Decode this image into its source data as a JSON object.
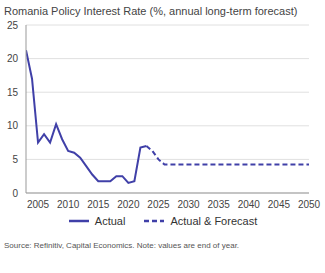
{
  "chart_data": {
    "type": "line",
    "title": "Romania Policy Interest Rate (%, annual long-term forecast)",
    "source": "Source: Refinitiv, Capital Economics. Note: values are end of year.",
    "x": [
      2003,
      2004,
      2005,
      2006,
      2007,
      2008,
      2009,
      2010,
      2011,
      2012,
      2013,
      2014,
      2015,
      2016,
      2017,
      2018,
      2019,
      2020,
      2021,
      2022,
      2023,
      2024,
      2025,
      2026,
      2027,
      2028,
      2029,
      2030,
      2031,
      2032,
      2033,
      2034,
      2035,
      2036,
      2037,
      2038,
      2039,
      2040,
      2041,
      2042,
      2043,
      2044,
      2045,
      2046,
      2047,
      2048,
      2049,
      2050
    ],
    "series": [
      {
        "name": "Actual",
        "color": "#4040a8",
        "line_style": "solid",
        "values": [
          21.25,
          17,
          7.5,
          8.75,
          7.5,
          10.25,
          8,
          6.25,
          6,
          5.25,
          4,
          2.75,
          1.75,
          1.75,
          1.75,
          2.5,
          2.5,
          1.5,
          1.75,
          6.75,
          7,
          null,
          null,
          null,
          null,
          null,
          null,
          null,
          null,
          null,
          null,
          null,
          null,
          null,
          null,
          null,
          null,
          null,
          null,
          null,
          null,
          null,
          null,
          null,
          null,
          null,
          null,
          null
        ]
      },
      {
        "name": "Actual & Forecast",
        "color": "#4040a8",
        "line_style": "dashed",
        "values": [
          null,
          null,
          null,
          null,
          null,
          null,
          null,
          null,
          null,
          null,
          null,
          null,
          null,
          null,
          null,
          null,
          null,
          null,
          null,
          null,
          7,
          6.25,
          5,
          4.25,
          4.25,
          4.25,
          4.25,
          4.25,
          4.25,
          4.25,
          4.25,
          4.25,
          4.25,
          4.25,
          4.25,
          4.25,
          4.25,
          4.25,
          4.25,
          4.25,
          4.25,
          4.25,
          4.25,
          4.25,
          4.25,
          4.25,
          4.25,
          4.25
        ]
      }
    ],
    "xlim": [
      2003,
      2050
    ],
    "xticks": [
      2005,
      2010,
      2015,
      2020,
      2025,
      2030,
      2035,
      2040,
      2045,
      2050
    ],
    "ylim": [
      0,
      25
    ],
    "yticks": [
      0,
      5,
      10,
      15,
      20,
      25
    ],
    "grid": true,
    "legend": "bottom"
  }
}
